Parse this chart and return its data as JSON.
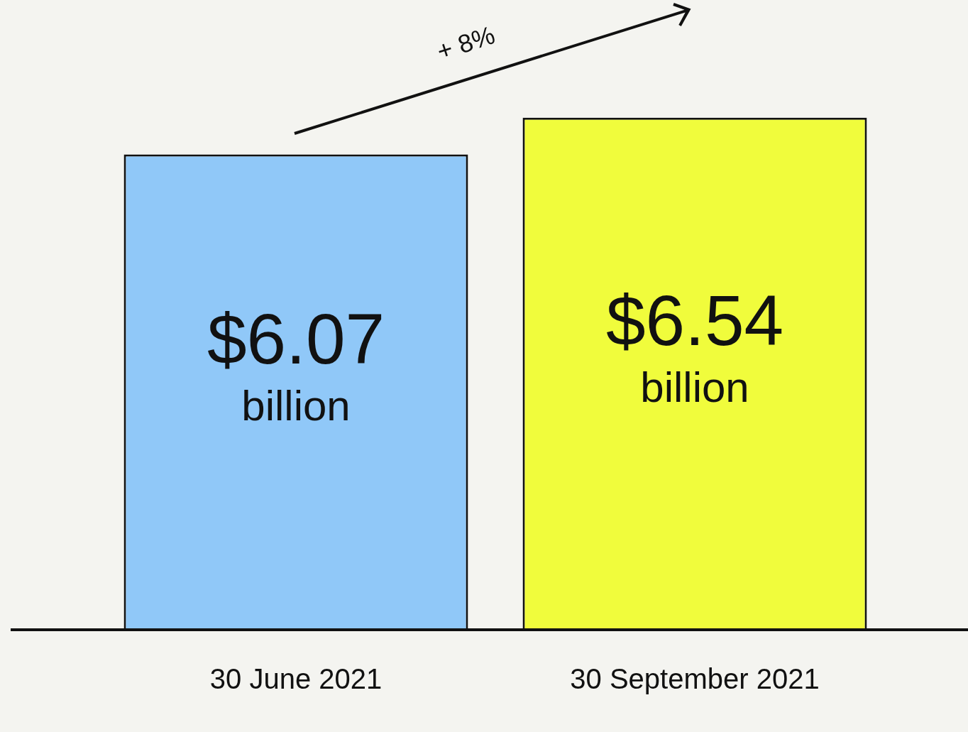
{
  "chart_data": {
    "type": "bar",
    "categories": [
      "30 June 2021",
      "30 September 2021"
    ],
    "values": [
      6.07,
      6.54
    ],
    "colors": [
      "#90c8f8",
      "#f0fc3c"
    ],
    "value_labels": [
      "$6.07 billion",
      "$6.54 billion"
    ],
    "annotations": [
      "+ 8%"
    ],
    "grid": false,
    "legend": false
  }
}
